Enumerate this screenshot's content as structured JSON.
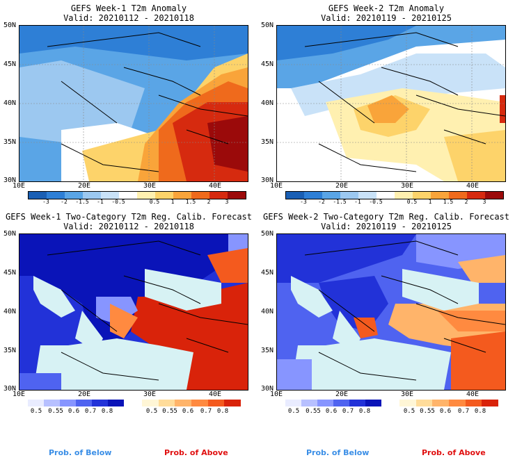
{
  "panels": [
    {
      "title1": "GEFS Week-1 T2m Anomaly",
      "title2": "Valid: 20210112 - 20210118"
    },
    {
      "title1": "GEFS Week-2 T2m Anomaly",
      "title2": "Valid: 20210119 - 20210125"
    },
    {
      "title1": "GEFS Week-1 Two-Category T2m Reg. Calib. Forecast",
      "title2": "Valid: 20210112 - 20210118"
    },
    {
      "title1": "GEFS Week-2 Two-Category T2m Reg. Calib. Forecast",
      "title2": "Valid: 20210119 - 20210125"
    }
  ],
  "lat_labels": [
    "50N",
    "45N",
    "40N",
    "35N",
    "30N"
  ],
  "lon_labels_left": [
    "10E",
    "20E",
    "30E",
    "40E"
  ],
  "lon_labels_right": [
    "10E",
    "20E",
    "30E",
    "40E"
  ],
  "anom_ticks": [
    "-3",
    "-2",
    "-1.5",
    "-1",
    "-0.5",
    "0.5",
    "1",
    "1.5",
    "2",
    "3"
  ],
  "prob_ticks": [
    "0.5",
    "0.55",
    "0.6",
    "0.7",
    "0.8"
  ],
  "prob_below_label": "Prob. of Below",
  "prob_above_label": "Prob. of Above",
  "colors": {
    "anom": [
      "#1a5fb4",
      "#2e7fd6",
      "#5aa5e6",
      "#9cc8f0",
      "#c9e2f8",
      "#ffffff",
      "#fff0b0",
      "#fdd36a",
      "#f9a43a",
      "#ef6a1c",
      "#d62a0f",
      "#9b0a0a"
    ],
    "below": [
      "#e9ecff",
      "#b7c0ff",
      "#8795ff",
      "#4f63f0",
      "#2232d8",
      "#0a14b8"
    ],
    "above": [
      "#fff6d6",
      "#ffdc9a",
      "#ffb46a",
      "#ff8a40",
      "#f45a1e",
      "#d9230a"
    ],
    "sea": "#d7f2f4",
    "prob_below_text": "#3a8ee6",
    "prob_above_text": "#e01010"
  }
}
